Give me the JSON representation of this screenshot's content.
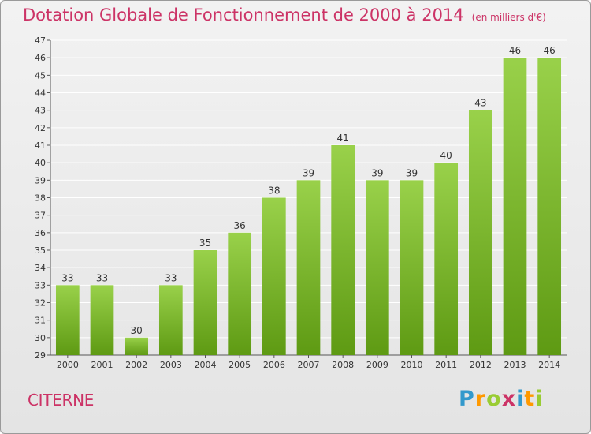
{
  "header": {
    "title": "Dotation Globale de Fonctionnement de 2000 à 2014",
    "subtitle": "(en milliers d'€)"
  },
  "footer": {
    "commune": "CITERNE",
    "logo_text": "Proxiti",
    "logo_colors": [
      "#3399cc",
      "#ff9900",
      "#99cc33",
      "#cc3366",
      "#3399cc",
      "#ff9900",
      "#99cc33"
    ]
  },
  "colors": {
    "bar_top": "#99d14a",
    "bar_bottom": "#5e9a13",
    "title": "#cc3366",
    "grid": "#ffffff",
    "axis": "#555555"
  },
  "chart_data": {
    "type": "bar",
    "title": "Dotation Globale de Fonctionnement de 2000 à 2014",
    "subtitle": "(en milliers d'€)",
    "xlabel": "",
    "ylabel": "",
    "categories": [
      "2000",
      "2001",
      "2002",
      "2003",
      "2004",
      "2005",
      "2006",
      "2007",
      "2008",
      "2009",
      "2010",
      "2011",
      "2012",
      "2013",
      "2014"
    ],
    "values": [
      33,
      33,
      30,
      33,
      35,
      36,
      38,
      39,
      41,
      39,
      39,
      40,
      43,
      46,
      46
    ],
    "data_labels": [
      "33",
      "33",
      "30",
      "33",
      "35",
      "36",
      "38",
      "39",
      "41",
      "39",
      "39",
      "40",
      "43",
      "46",
      "46"
    ],
    "ylim": [
      29,
      47
    ],
    "yticks": [
      "29",
      "30",
      "31",
      "32",
      "33",
      "34",
      "35",
      "36",
      "37",
      "38",
      "39",
      "40",
      "41",
      "42",
      "43",
      "44",
      "45",
      "46",
      "47"
    ],
    "grid": true,
    "legend": "none"
  }
}
